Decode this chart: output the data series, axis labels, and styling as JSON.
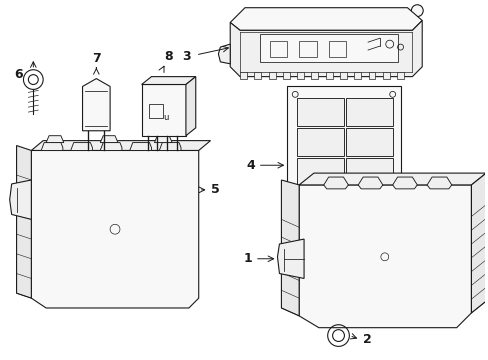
{
  "background_color": "#ffffff",
  "line_color": "#1a1a1a",
  "figsize": [
    4.89,
    3.6
  ],
  "dpi": 100,
  "components": {
    "label_fontsize": 9,
    "arrow_lw": 0.7
  }
}
